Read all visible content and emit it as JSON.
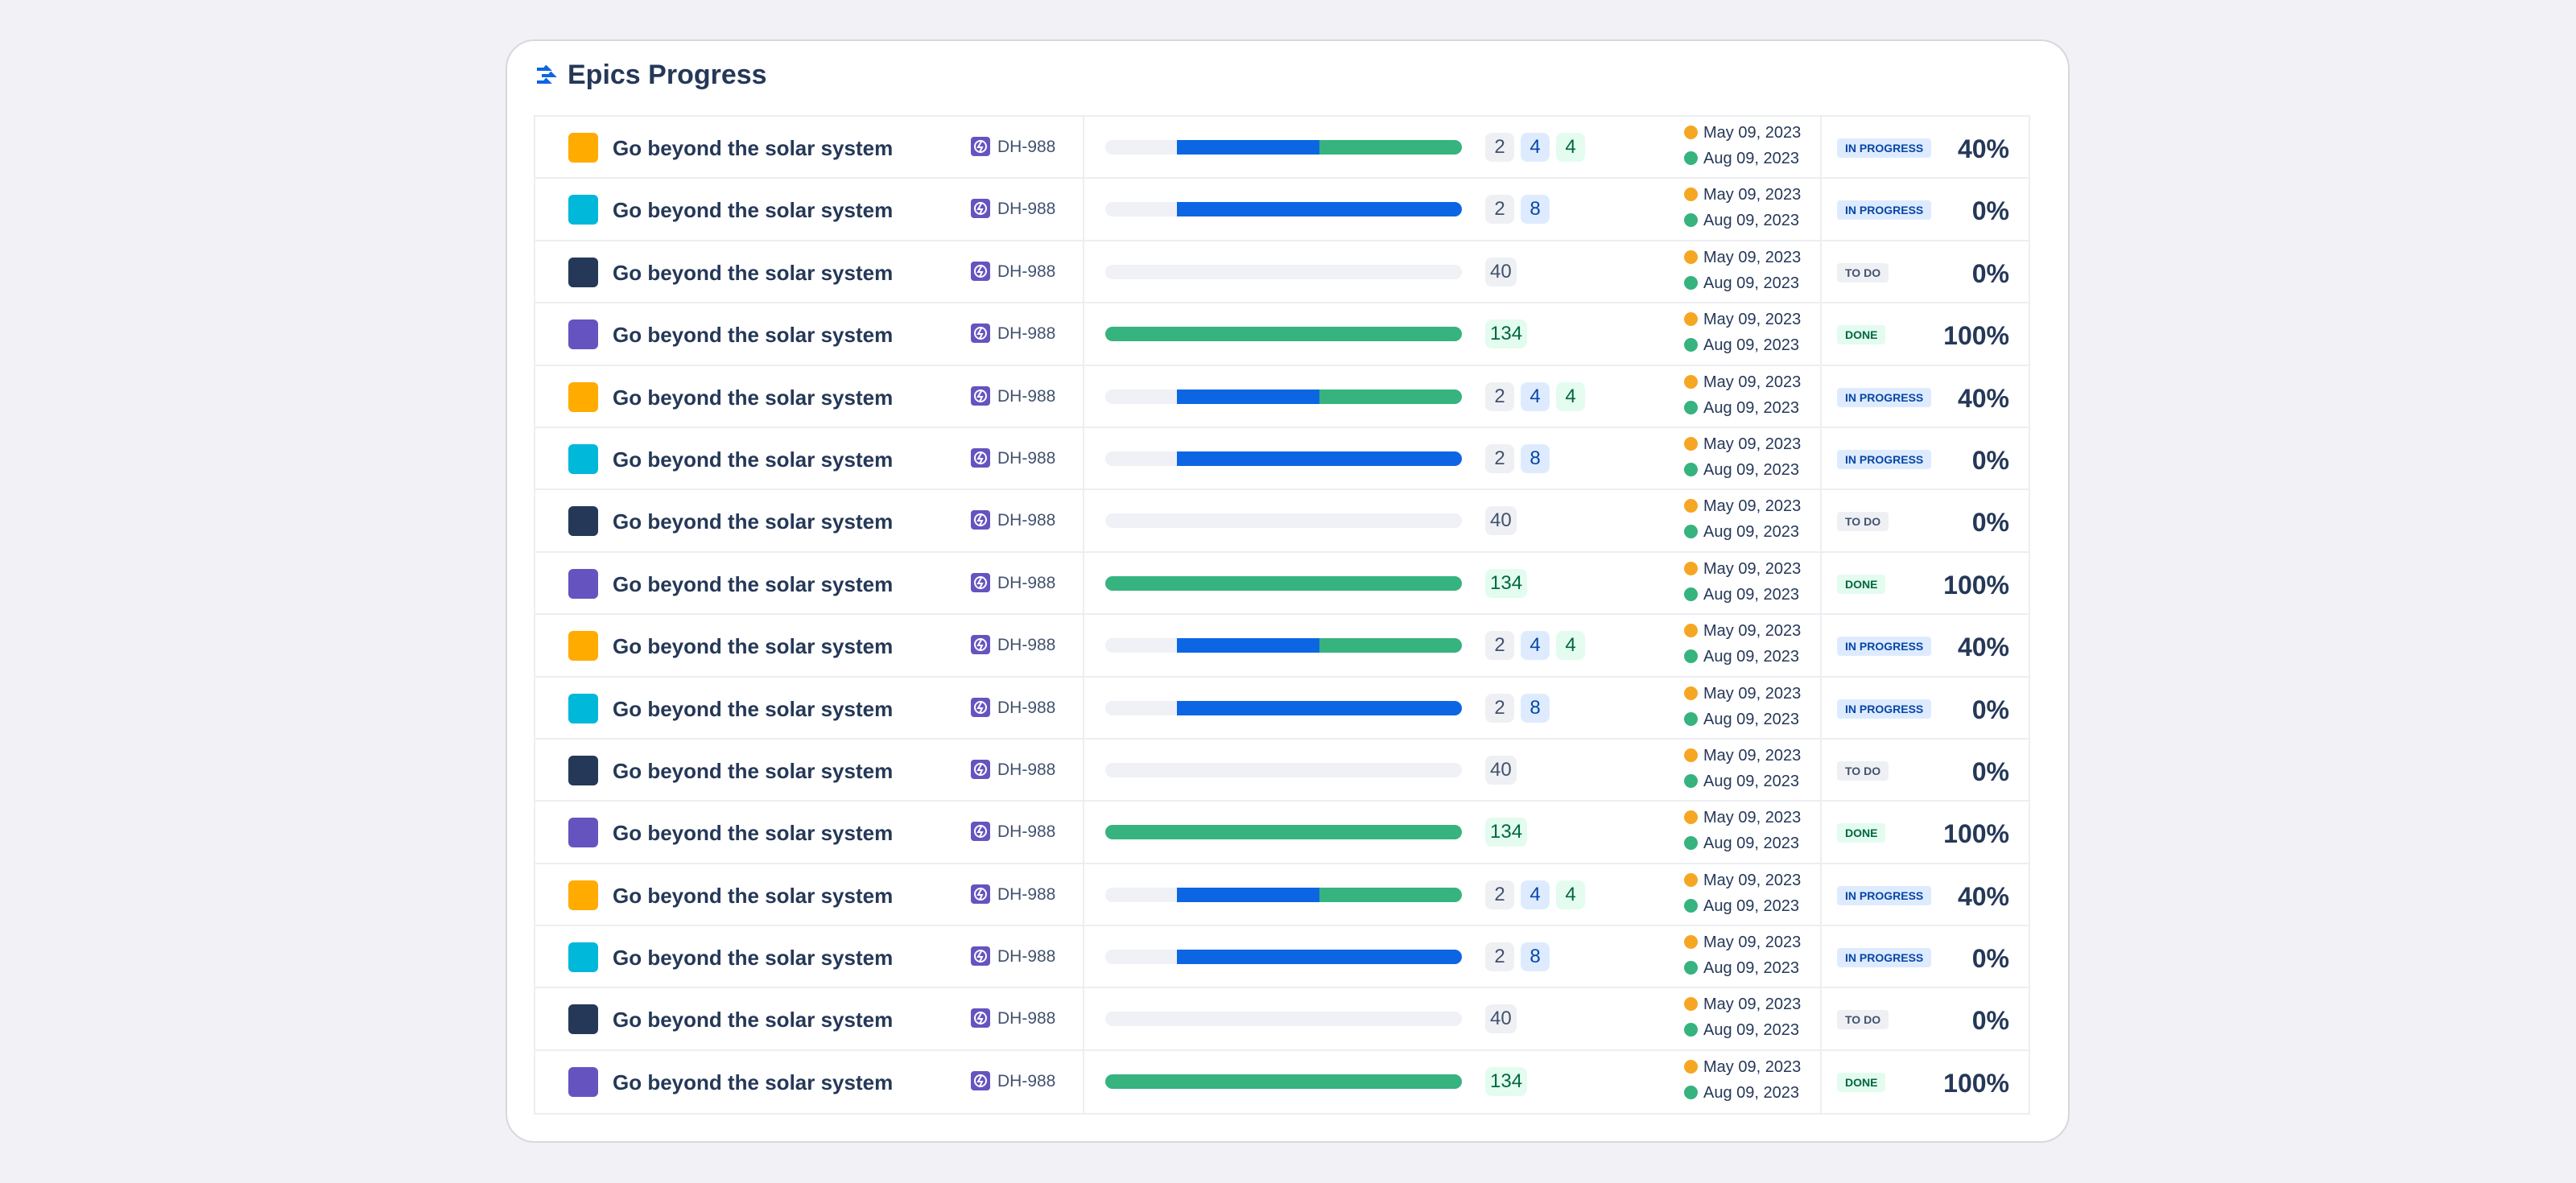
{
  "header": {
    "title": "Epics Progress"
  },
  "rows": [
    {
      "color": "#ffab00",
      "name": "Go beyond the solar system",
      "key": "DH-988",
      "todo": 2,
      "in_progress": 4,
      "done": 4,
      "start": "May 09, 2023",
      "end": "Aug 09, 2023",
      "status": "IN PROGRESS",
      "status_colors": [
        "#deebff",
        "#0747a6"
      ],
      "percent": "40%"
    },
    {
      "color": "#00b8d9",
      "name": "Go beyond the solar system",
      "key": "DH-988",
      "todo": 2,
      "in_progress": 8,
      "start": "May 09, 2023",
      "end": "Aug 09, 2023",
      "status": "IN PROGRESS",
      "status_colors": [
        "#deebff",
        "#0747a6"
      ],
      "percent": "0%"
    },
    {
      "color": "#253858",
      "name": "Go beyond the solar system",
      "key": "DH-988",
      "todo": 40,
      "start": "May 09, 2023",
      "end": "Aug 09, 2023",
      "status": "TO DO",
      "status_colors": [
        "#eef0f4",
        "#42526e"
      ],
      "percent": "0%"
    },
    {
      "color": "#6554c0",
      "name": "Go beyond the solar system",
      "key": "DH-988",
      "done": 134,
      "start": "May 09, 2023",
      "end": "Aug 09, 2023",
      "status": "DONE",
      "status_colors": [
        "#e3fcef",
        "#006644"
      ],
      "percent": "100%"
    },
    {
      "color": "#ffab00",
      "name": "Go beyond the solar system",
      "key": "DH-988",
      "todo": 2,
      "in_progress": 4,
      "done": 4,
      "start": "May 09, 2023",
      "end": "Aug 09, 2023",
      "status": "IN PROGRESS",
      "status_colors": [
        "#deebff",
        "#0747a6"
      ],
      "percent": "40%"
    },
    {
      "color": "#00b8d9",
      "name": "Go beyond the solar system",
      "key": "DH-988",
      "todo": 2,
      "in_progress": 8,
      "start": "May 09, 2023",
      "end": "Aug 09, 2023",
      "status": "IN PROGRESS",
      "status_colors": [
        "#deebff",
        "#0747a6"
      ],
      "percent": "0%"
    },
    {
      "color": "#253858",
      "name": "Go beyond the solar system",
      "key": "DH-988",
      "todo": 40,
      "start": "May 09, 2023",
      "end": "Aug 09, 2023",
      "status": "TO DO",
      "status_colors": [
        "#eef0f4",
        "#42526e"
      ],
      "percent": "0%"
    },
    {
      "color": "#6554c0",
      "name": "Go beyond the solar system",
      "key": "DH-988",
      "done": 134,
      "start": "May 09, 2023",
      "end": "Aug 09, 2023",
      "status": "DONE",
      "status_colors": [
        "#e3fcef",
        "#006644"
      ],
      "percent": "100%"
    },
    {
      "color": "#ffab00",
      "name": "Go beyond the solar system",
      "key": "DH-988",
      "todo": 2,
      "in_progress": 4,
      "done": 4,
      "start": "May 09, 2023",
      "end": "Aug 09, 2023",
      "status": "IN PROGRESS",
      "status_colors": [
        "#deebff",
        "#0747a6"
      ],
      "percent": "40%"
    },
    {
      "color": "#00b8d9",
      "name": "Go beyond the solar system",
      "key": "DH-988",
      "todo": 2,
      "in_progress": 8,
      "start": "May 09, 2023",
      "end": "Aug 09, 2023",
      "status": "IN PROGRESS",
      "status_colors": [
        "#deebff",
        "#0747a6"
      ],
      "percent": "0%"
    },
    {
      "color": "#253858",
      "name": "Go beyond the solar system",
      "key": "DH-988",
      "todo": 40,
      "start": "May 09, 2023",
      "end": "Aug 09, 2023",
      "status": "TO DO",
      "status_colors": [
        "#eef0f4",
        "#42526e"
      ],
      "percent": "0%"
    },
    {
      "color": "#6554c0",
      "name": "Go beyond the solar system",
      "key": "DH-988",
      "done": 134,
      "start": "May 09, 2023",
      "end": "Aug 09, 2023",
      "status": "DONE",
      "status_colors": [
        "#e3fcef",
        "#006644"
      ],
      "percent": "100%"
    },
    {
      "color": "#ffab00",
      "name": "Go beyond the solar system",
      "key": "DH-988",
      "todo": 2,
      "in_progress": 4,
      "done": 4,
      "start": "May 09, 2023",
      "end": "Aug 09, 2023",
      "status": "IN PROGRESS",
      "status_colors": [
        "#deebff",
        "#0747a6"
      ],
      "percent": "40%"
    },
    {
      "color": "#00b8d9",
      "name": "Go beyond the solar system",
      "key": "DH-988",
      "todo": 2,
      "in_progress": 8,
      "start": "May 09, 2023",
      "end": "Aug 09, 2023",
      "status": "IN PROGRESS",
      "status_colors": [
        "#deebff",
        "#0747a6"
      ],
      "percent": "0%"
    },
    {
      "color": "#253858",
      "name": "Go beyond the solar system",
      "key": "DH-988",
      "todo": 40,
      "start": "May 09, 2023",
      "end": "Aug 09, 2023",
      "status": "TO DO",
      "status_colors": [
        "#eef0f4",
        "#42526e"
      ],
      "percent": "0%"
    },
    {
      "color": "#6554c0",
      "name": "Go beyond the solar system",
      "key": "DH-988",
      "done": 134,
      "start": "May 09, 2023",
      "end": "Aug 09, 2023",
      "status": "DONE",
      "status_colors": [
        "#e3fcef",
        "#006644"
      ],
      "percent": "100%"
    }
  ]
}
